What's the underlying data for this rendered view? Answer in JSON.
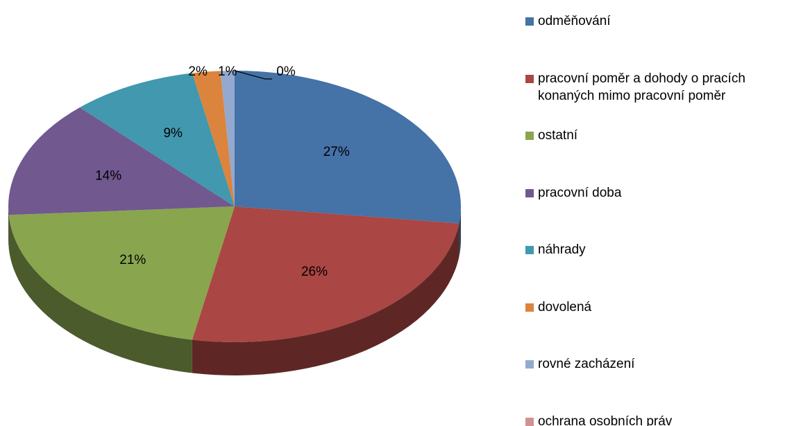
{
  "chart_data": {
    "type": "pie",
    "categories": [
      "odměňování",
      "pracovní poměr a dohody o pracích konaných mimo pracovní poměr",
      "ostatní",
      "pracovní doba",
      "náhrady",
      "dovolená",
      "rovné zacházení",
      "ochrana osobních práv"
    ],
    "values": [
      27,
      26,
      21,
      14,
      9,
      2,
      1,
      0
    ],
    "value_labels": [
      "27%",
      "26%",
      "21%",
      "14%",
      "9%",
      "2%",
      "1%",
      "0%"
    ],
    "colors": [
      "#4572A7",
      "#AA4643",
      "#89A54E",
      "#71588F",
      "#4198AF",
      "#DB843D",
      "#93A9CF",
      "#D19392"
    ],
    "legend": "right"
  }
}
